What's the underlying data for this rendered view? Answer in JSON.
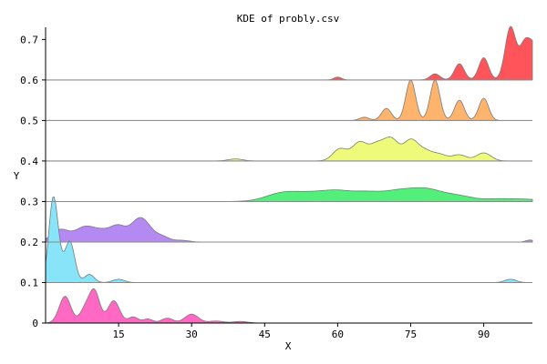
{
  "chart_data": {
    "type": "area",
    "title": "KDE of probly.csv",
    "xlabel": "X",
    "ylabel": "Y",
    "xlim": [
      0,
      100
    ],
    "ylim": [
      0,
      0.73
    ],
    "xticks": [
      15,
      30,
      45,
      60,
      75,
      90
    ],
    "xtick_labels": [
      "15",
      "30",
      "45",
      "60",
      "75",
      "90"
    ],
    "yticks": [
      0,
      0.1,
      0.2,
      0.3,
      0.4,
      0.5,
      0.6,
      0.7
    ],
    "ytick_labels": [
      "0",
      "0.1",
      "0.2",
      "0.3",
      "0.4",
      "0.5",
      "0.6",
      "0.7"
    ],
    "grid": false,
    "legend": "none",
    "series": [
      {
        "baseline": 0.0,
        "color": "#ff69c4",
        "peaks": [
          [
            4,
            0.066,
            1.2
          ],
          [
            8,
            0.03,
            1.0
          ],
          [
            10,
            0.08,
            1.1
          ],
          [
            14,
            0.055,
            1.2
          ],
          [
            18,
            0.015,
            1.0
          ],
          [
            21,
            0.01,
            1.0
          ],
          [
            25,
            0.012,
            1.2
          ],
          [
            30,
            0.022,
            1.4
          ],
          [
            35,
            0.005,
            1.5
          ],
          [
            40,
            0.004,
            1.5
          ]
        ]
      },
      {
        "baseline": 0.1,
        "color": "#88e4f8",
        "peaks": [
          [
            1.5,
            0.18,
            0.9
          ],
          [
            2.5,
            0.05,
            1.0
          ],
          [
            5,
            0.1,
            1.0
          ],
          [
            9,
            0.02,
            1.0
          ],
          [
            15,
            0.008,
            1.2
          ],
          [
            95.5,
            0.008,
            1.2
          ]
        ]
      },
      {
        "baseline": 0.2,
        "color": "#b589f2",
        "peaks": [
          [
            3,
            0.03,
            1.8
          ],
          [
            8,
            0.035,
            2.0
          ],
          [
            12,
            0.025,
            2.0
          ],
          [
            15,
            0.03,
            1.5
          ],
          [
            19.5,
            0.06,
            2.0
          ],
          [
            24,
            0.012,
            1.5
          ],
          [
            28,
            0.004,
            1.5
          ],
          [
            99.5,
            0.005,
            0.8
          ]
        ]
      },
      {
        "baseline": 0.3,
        "color": "#52f07a",
        "peaks": [
          [
            49,
            0.022,
            3.5
          ],
          [
            55,
            0.015,
            3.0
          ],
          [
            60,
            0.022,
            3.0
          ],
          [
            66,
            0.02,
            3.0
          ],
          [
            72,
            0.02,
            3.0
          ],
          [
            78,
            0.03,
            3.5
          ],
          [
            85,
            0.012,
            3.0
          ],
          [
            93,
            0.006,
            3.0
          ],
          [
            99,
            0.005,
            3.0
          ]
        ]
      },
      {
        "baseline": 0.4,
        "color": "#eefa7a",
        "peaks": [
          [
            39,
            0.005,
            1.5
          ],
          [
            60.5,
            0.03,
            1.5
          ],
          [
            64.5,
            0.045,
            1.5
          ],
          [
            68,
            0.038,
            1.5
          ],
          [
            71,
            0.052,
            1.5
          ],
          [
            75,
            0.05,
            1.5
          ],
          [
            78,
            0.022,
            1.5
          ],
          [
            81,
            0.015,
            1.5
          ],
          [
            85,
            0.015,
            1.5
          ],
          [
            90,
            0.02,
            1.5
          ]
        ]
      },
      {
        "baseline": 0.5,
        "color": "#ffb46e",
        "peaks": [
          [
            65.5,
            0.008,
            1.0
          ],
          [
            70,
            0.03,
            1.0
          ],
          [
            75,
            0.1,
            1.0
          ],
          [
            80,
            0.1,
            1.0
          ],
          [
            85,
            0.05,
            1.0
          ],
          [
            90,
            0.055,
            1.0
          ]
        ]
      },
      {
        "baseline": 0.6,
        "color": "#ff545a",
        "peaks": [
          [
            60,
            0.007,
            0.8
          ],
          [
            80,
            0.015,
            1.0
          ],
          [
            85,
            0.04,
            1.0
          ],
          [
            90,
            0.055,
            1.0
          ],
          [
            95.5,
            0.13,
            1.1
          ],
          [
            98.5,
            0.09,
            1.1
          ],
          [
            100.5,
            0.07,
            1.0
          ]
        ]
      }
    ]
  }
}
